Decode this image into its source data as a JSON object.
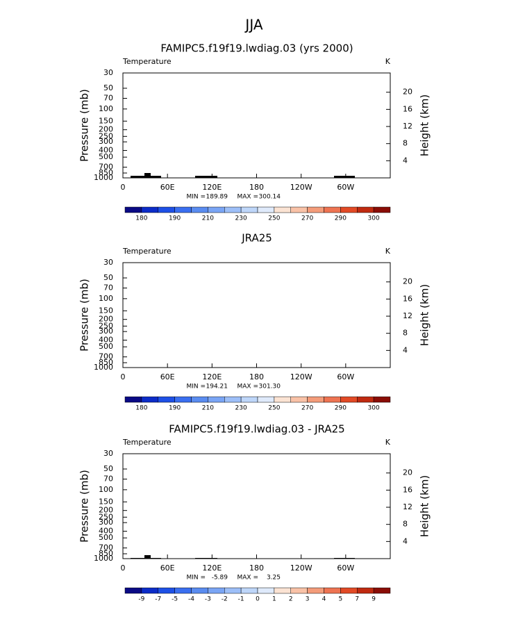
{
  "title": "JJA",
  "chart_data": [
    {
      "type": "contour",
      "title": "FAMIPC5.f19f19.lwdiag.03 (yrs 2000)",
      "variable": "Temperature",
      "units": "K",
      "ylabel": "Pressure (mb)",
      "y2label": "Height (km)",
      "xlim": [
        0,
        360
      ],
      "xticks": [
        0,
        {
          "value": 60,
          "label": "60E"
        },
        {
          "value": 120,
          "label": "120E"
        },
        180,
        {
          "value": 240,
          "label": "120W"
        },
        {
          "value": 300,
          "label": "60W"
        }
      ],
      "ylim": [
        1000,
        30
      ],
      "yscale": "log",
      "yticks": [
        30,
        50,
        70,
        100,
        150,
        200,
        250,
        300,
        400,
        500,
        700,
        850,
        1000
      ],
      "y2lim": [
        0,
        24.5
      ],
      "y2ticks": [
        4,
        8,
        12,
        16,
        20
      ],
      "min_text": "MIN =",
      "min": 189.89,
      "max_text": "MAX =",
      "max": 300.14,
      "colorbar": {
        "colors": [
          "#0a0a85",
          "#0c2cc8",
          "#1e50e6",
          "#3a6ff0",
          "#5a8cf0",
          "#7aa5f5",
          "#9dbff8",
          "#bed6f9",
          "#dfeafb",
          "#fbe3d3",
          "#f9c2a7",
          "#f49c7a",
          "#ee7452",
          "#e24a26",
          "#c02a10",
          "#8a0d06"
        ],
        "labels": [
          180,
          190,
          210,
          230,
          250,
          270,
          290,
          300
        ]
      }
    },
    {
      "type": "contour",
      "title": "JRA25",
      "variable": "Temperature",
      "units": "K",
      "ylabel": "Pressure (mb)",
      "y2label": "Height (km)",
      "xlim": [
        0,
        360
      ],
      "xticks": [
        0,
        {
          "value": 60,
          "label": "60E"
        },
        {
          "value": 120,
          "label": "120E"
        },
        180,
        {
          "value": 240,
          "label": "120W"
        },
        {
          "value": 300,
          "label": "60W"
        }
      ],
      "ylim": [
        1000,
        30
      ],
      "yscale": "log",
      "yticks": [
        30,
        50,
        70,
        100,
        150,
        200,
        250,
        300,
        400,
        500,
        700,
        850,
        1000
      ],
      "y2lim": [
        0,
        24.5
      ],
      "y2ticks": [
        4,
        8,
        12,
        16,
        20
      ],
      "min_text": "MIN =",
      "min": 194.21,
      "max_text": "MAX =",
      "max": {
        "value": 301.3,
        "label": "301.30"
      },
      "colorbar": {
        "colors": [
          "#0a0a85",
          "#0c2cc8",
          "#1e50e6",
          "#3a6ff0",
          "#5a8cf0",
          "#7aa5f5",
          "#9dbff8",
          "#bed6f9",
          "#dfeafb",
          "#fbe3d3",
          "#f9c2a7",
          "#f49c7a",
          "#ee7452",
          "#e24a26",
          "#c02a10",
          "#8a0d06"
        ],
        "labels": [
          180,
          190,
          210,
          230,
          250,
          270,
          290,
          300
        ]
      }
    },
    {
      "type": "contour",
      "title": "FAMIPC5.f19f19.lwdiag.03 - JRA25",
      "variable": "Temperature",
      "units": "K",
      "ylabel": "Pressure (mb)",
      "y2label": "Height (km)",
      "xlim": [
        0,
        360
      ],
      "xticks": [
        0,
        {
          "value": 60,
          "label": "60E"
        },
        {
          "value": 120,
          "label": "120E"
        },
        180,
        {
          "value": 240,
          "label": "120W"
        },
        {
          "value": 300,
          "label": "60W"
        }
      ],
      "ylim": [
        1000,
        30
      ],
      "yscale": "log",
      "yticks": [
        30,
        50,
        70,
        100,
        150,
        200,
        250,
        300,
        400,
        500,
        700,
        850,
        1000
      ],
      "y2lim": [
        0,
        24.5
      ],
      "y2ticks": [
        4,
        8,
        12,
        16,
        20
      ],
      "min_text": "MIN =",
      "min": -5.89,
      "max_text": "MAX =",
      "max": 3.25,
      "colorbar": {
        "colors": [
          "#0a0a85",
          "#0c2cc8",
          "#1e50e6",
          "#3a6ff0",
          "#5a8cf0",
          "#7aa5f5",
          "#9dbff8",
          "#bed6f9",
          "#dfeafb",
          "#fbe3d3",
          "#f9c2a7",
          "#f49c7a",
          "#ee7452",
          "#e24a26",
          "#c02a10",
          "#8a0d06"
        ],
        "labels": [
          -9,
          -7,
          -5,
          -4,
          -3,
          -2,
          -1,
          0,
          1,
          2,
          3,
          4,
          5,
          7,
          9
        ]
      }
    }
  ]
}
